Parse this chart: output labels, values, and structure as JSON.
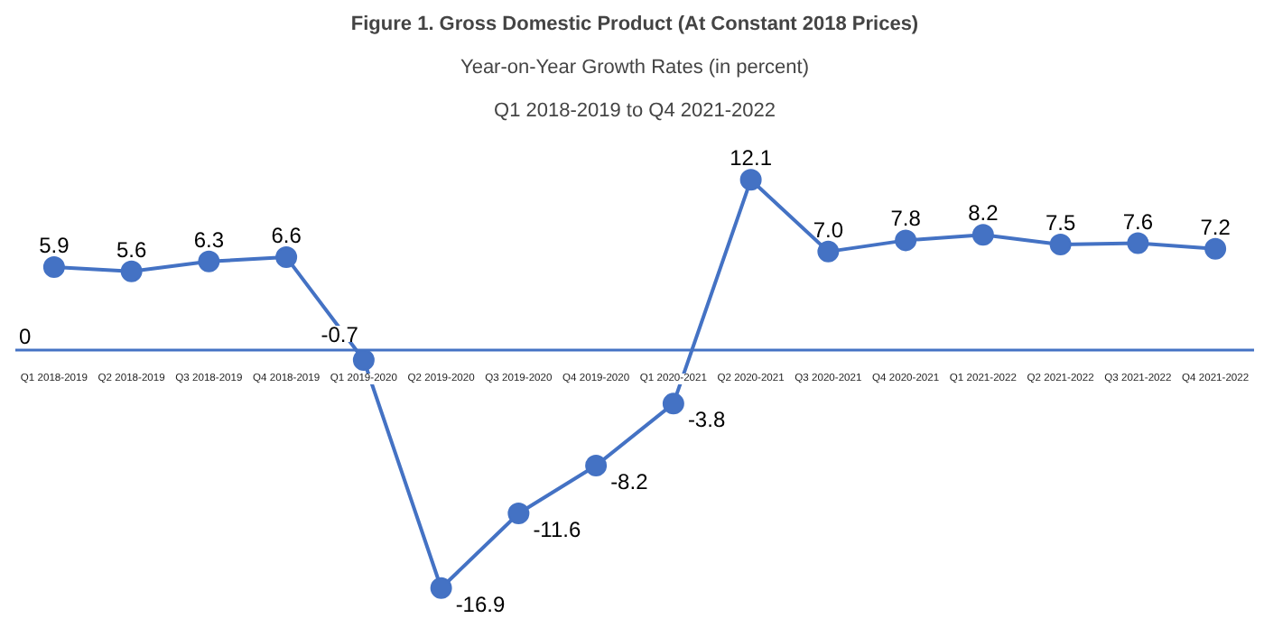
{
  "chart_data": {
    "type": "line",
    "title": "Figure 1. Gross Domestic Product (At Constant 2018 Prices)",
    "subtitle": "Year-on-Year Growth Rates (in percent)",
    "annotations": [
      "Q1 2018-2019 to Q4 2021-2022",
      "0"
    ],
    "categories": [
      "Q1 2018-2019",
      "Q2 2018-2019",
      "Q3 2018-2019",
      "Q4 2018-2019",
      "Q1 2019-2020",
      "Q2 2019-2020",
      "Q3 2019-2020",
      "Q4 2019-2020",
      "Q1 2020-2021",
      "Q2 2020-2021",
      "Q3 2020-2021",
      "Q4 2020-2021",
      "Q1 2021-2022",
      "Q2 2021-2022",
      "Q3 2021-2022",
      "Q4 2021-2022"
    ],
    "series": [
      {
        "color": "#4472c4",
        "values": [
          5.9,
          5.6,
          6.3,
          6.6,
          -0.7,
          -16.9,
          -11.6,
          -8.2,
          -3.8,
          12.1,
          7.0,
          7.8,
          8.2,
          7.5,
          7.6,
          7.2
        ],
        "value_labels": [
          "5.9",
          "5.6",
          "6.3",
          "6.6",
          "-0.7",
          "-16.9",
          "-11.6",
          "-8.2",
          "-3.8",
          "12.1",
          "7.0",
          "7.8",
          "8.2",
          "7.5",
          "7.6",
          "7.2"
        ]
      }
    ],
    "marker": "circle",
    "line_style": "solid",
    "grid": false
  }
}
